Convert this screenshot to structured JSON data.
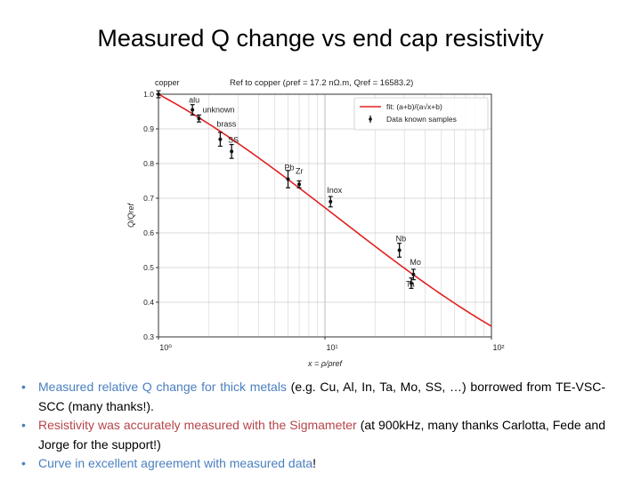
{
  "slide": {
    "title": "Measured Q change vs end cap resistivity"
  },
  "chart_data": {
    "type": "scatter",
    "title": "Ref to copper (ρref = 17.2 nΩ.m, Qref = 16583.2)",
    "xlabel": "x = ρ/ρref",
    "ylabel": "Q/Qref",
    "xscale": "log",
    "xlim": [
      1,
      100
    ],
    "ylim": [
      0.3,
      1.0
    ],
    "x_ticks": [
      1,
      10,
      100
    ],
    "x_tick_labels": [
      "10⁰",
      "10¹",
      "10²"
    ],
    "y_ticks": [
      0.3,
      0.4,
      0.5,
      0.6,
      0.7,
      0.8,
      0.9,
      1.0
    ],
    "y_tick_labels": [
      "0.3",
      "0.4",
      "0.5",
      "0.6",
      "0.7",
      "0.8",
      "0.9",
      "1.0"
    ],
    "grid": true,
    "legend": "top-right",
    "series": [
      {
        "name": "fit: (a+b)/(a√x+b)",
        "kind": "line",
        "color": "#e02020",
        "a": 0.225,
        "b": 0.775
      },
      {
        "name": "Data known samples",
        "kind": "errorbar",
        "color": "#000000",
        "points": [
          {
            "label": "copper",
            "x": 1.0,
            "y": 1.0,
            "err": 0.01
          },
          {
            "label": "alu",
            "x": 1.6,
            "y": 0.955,
            "err": 0.015
          },
          {
            "label": "unknown",
            "x": 1.75,
            "y": 0.93,
            "err": 0.01
          },
          {
            "label": "brass",
            "x": 2.35,
            "y": 0.87,
            "err": 0.02
          },
          {
            "label": "SS",
            "x": 2.75,
            "y": 0.835,
            "err": 0.02
          },
          {
            "label": "Pb",
            "x": 6.0,
            "y": 0.755,
            "err": 0.025
          },
          {
            "label": "Zr",
            "x": 7.0,
            "y": 0.74,
            "err": 0.01
          },
          {
            "label": "Inox",
            "x": 10.8,
            "y": 0.69,
            "err": 0.015
          },
          {
            "label": "Nb",
            "x": 28.0,
            "y": 0.55,
            "err": 0.02
          },
          {
            "label": "Mo",
            "x": 34.0,
            "y": 0.48,
            "err": 0.015
          },
          {
            "label": "Ta",
            "x": 33.0,
            "y": 0.455,
            "err": 0.015
          }
        ]
      }
    ]
  },
  "bullets": [
    {
      "parts": [
        {
          "text": "Measured relative Q change for thick metals ",
          "tone": "blue"
        },
        {
          "text": "(e.g. Cu, Al, In, Ta, Mo, SS, …) borrowed from TE-VSC-SCC (many thanks!).",
          "tone": "black"
        }
      ]
    },
    {
      "parts": [
        {
          "text": "Resistivity was accurately measured with the Sigmameter ",
          "tone": "red"
        },
        {
          "text": "(at 900kHz, many thanks Carlotta, Fede and Jorge for the support!)",
          "tone": "black"
        }
      ]
    },
    {
      "parts": [
        {
          "text": "Curve in excellent agreement with measured data",
          "tone": "blue"
        },
        {
          "text": "!",
          "tone": "black"
        }
      ]
    }
  ]
}
